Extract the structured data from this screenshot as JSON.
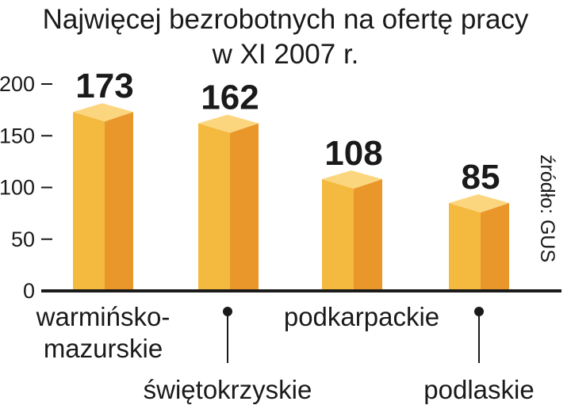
{
  "chart_data": {
    "type": "bar",
    "title_line1": "Najwięcej bezrobotnych na ofertę pracy",
    "title_line2": "w XI 2007 r.",
    "source": "źródło: GUS",
    "ylim": [
      0,
      200
    ],
    "yticks": [
      "0",
      "50",
      "100",
      "150",
      "200"
    ],
    "grid": false,
    "categories": [
      "warmińsko-mazurskie",
      "świętokrzyskie",
      "podkarpackie",
      "podlaskie"
    ],
    "category_lines": [
      [
        "warmińsko-",
        "mazurskie"
      ],
      [
        "świętokrzyskie"
      ],
      [
        "podkarpackie"
      ],
      [
        "podlaskie"
      ]
    ],
    "values": [
      173,
      162,
      108,
      85
    ],
    "value_labels": [
      "173",
      "162",
      "108",
      "85"
    ],
    "colors": {
      "front": "#f4b93f",
      "side": "#e9972a",
      "top": "#fbd67e",
      "axis": "#1a1a1a"
    }
  }
}
